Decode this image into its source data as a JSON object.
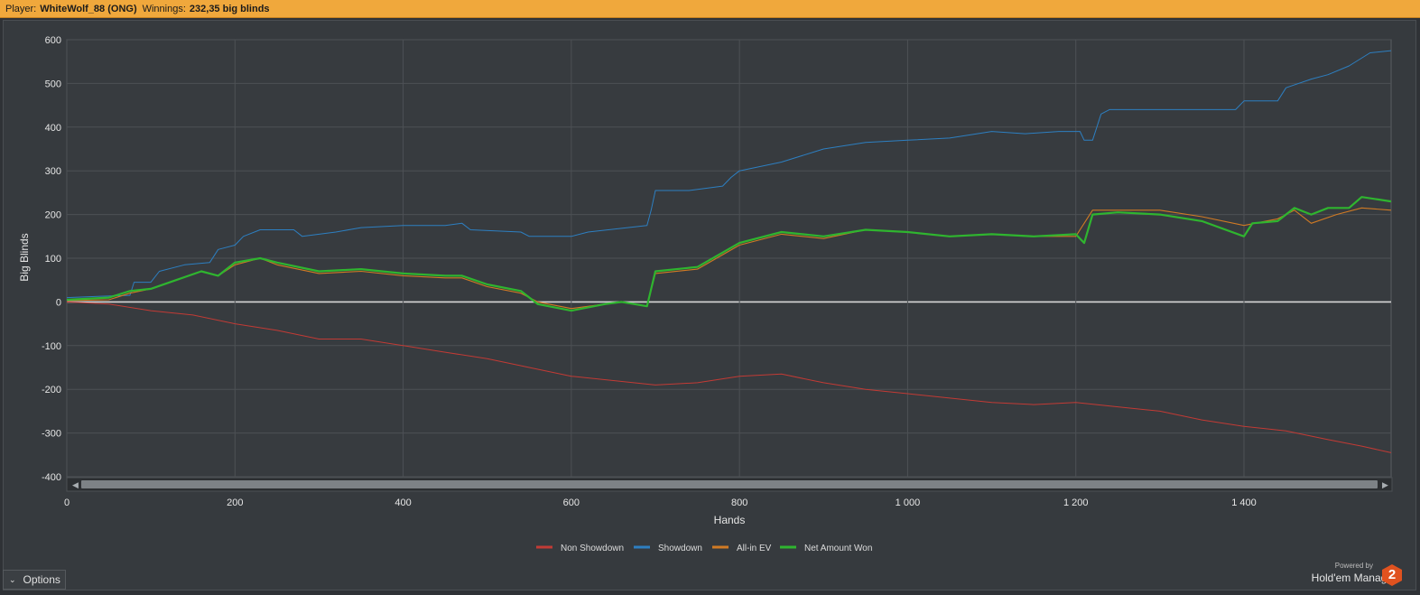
{
  "header": {
    "player_label": "Player:",
    "player_name": "WhiteWolf_88 (ONG)",
    "winnings_label": "Winnings:",
    "winnings_value": "232,35 big blinds"
  },
  "options": {
    "label": "Options"
  },
  "brand": {
    "powered_by": "Powered by",
    "name": "Hold'em Manager",
    "logo_number": "2"
  },
  "colors": {
    "non_showdown": "#c23b35",
    "showdown": "#2d7fc1",
    "allin_ev": "#d07a24",
    "net_won": "#2fb52f"
  },
  "chart_data": {
    "type": "line",
    "xlabel": "Hands",
    "ylabel": "Big Blinds",
    "xlim": [
      0,
      1575
    ],
    "ylim": [
      -400,
      600
    ],
    "x_ticks": [
      0,
      200,
      400,
      600,
      800,
      1000,
      1200,
      1400
    ],
    "x_tick_labels": [
      "0",
      "200",
      "400",
      "600",
      "800",
      "1 000",
      "1 200",
      "1 400"
    ],
    "y_ticks": [
      600,
      500,
      400,
      300,
      200,
      100,
      0,
      -100,
      -200,
      -300,
      -400
    ],
    "grid": true,
    "legend_position": "bottom-center",
    "series": [
      {
        "name": "Non Showdown",
        "color_key": "non_showdown",
        "points": [
          [
            0,
            0
          ],
          [
            50,
            -5
          ],
          [
            100,
            -20
          ],
          [
            150,
            -30
          ],
          [
            200,
            -50
          ],
          [
            250,
            -65
          ],
          [
            300,
            -85
          ],
          [
            350,
            -85
          ],
          [
            400,
            -100
          ],
          [
            450,
            -115
          ],
          [
            500,
            -130
          ],
          [
            550,
            -150
          ],
          [
            600,
            -170
          ],
          [
            650,
            -180
          ],
          [
            700,
            -190
          ],
          [
            750,
            -185
          ],
          [
            800,
            -170
          ],
          [
            850,
            -165
          ],
          [
            900,
            -185
          ],
          [
            950,
            -200
          ],
          [
            1000,
            -210
          ],
          [
            1050,
            -220
          ],
          [
            1100,
            -230
          ],
          [
            1150,
            -235
          ],
          [
            1200,
            -230
          ],
          [
            1250,
            -240
          ],
          [
            1300,
            -250
          ],
          [
            1350,
            -270
          ],
          [
            1400,
            -285
          ],
          [
            1450,
            -295
          ],
          [
            1500,
            -315
          ],
          [
            1540,
            -330
          ],
          [
            1575,
            -345
          ]
        ]
      },
      {
        "name": "Showdown",
        "color_key": "showdown",
        "points": [
          [
            0,
            10
          ],
          [
            40,
            13
          ],
          [
            75,
            15
          ],
          [
            80,
            45
          ],
          [
            100,
            45
          ],
          [
            110,
            70
          ],
          [
            140,
            85
          ],
          [
            170,
            90
          ],
          [
            180,
            120
          ],
          [
            200,
            130
          ],
          [
            210,
            150
          ],
          [
            230,
            165
          ],
          [
            270,
            165
          ],
          [
            280,
            150
          ],
          [
            320,
            160
          ],
          [
            350,
            170
          ],
          [
            400,
            175
          ],
          [
            450,
            175
          ],
          [
            470,
            180
          ],
          [
            480,
            165
          ],
          [
            540,
            160
          ],
          [
            550,
            150
          ],
          [
            600,
            150
          ],
          [
            620,
            160
          ],
          [
            690,
            175
          ],
          [
            695,
            210
          ],
          [
            700,
            255
          ],
          [
            740,
            255
          ],
          [
            780,
            265
          ],
          [
            790,
            285
          ],
          [
            800,
            300
          ],
          [
            850,
            320
          ],
          [
            900,
            350
          ],
          [
            950,
            365
          ],
          [
            1000,
            370
          ],
          [
            1050,
            375
          ],
          [
            1100,
            390
          ],
          [
            1140,
            385
          ],
          [
            1180,
            390
          ],
          [
            1205,
            390
          ],
          [
            1210,
            370
          ],
          [
            1220,
            370
          ],
          [
            1230,
            430
          ],
          [
            1240,
            440
          ],
          [
            1300,
            440
          ],
          [
            1350,
            440
          ],
          [
            1390,
            440
          ],
          [
            1400,
            460
          ],
          [
            1440,
            460
          ],
          [
            1450,
            490
          ],
          [
            1480,
            510
          ],
          [
            1500,
            520
          ],
          [
            1525,
            540
          ],
          [
            1550,
            570
          ],
          [
            1575,
            575
          ]
        ]
      },
      {
        "name": "All-in EV",
        "color_key": "allin_ev",
        "points": [
          [
            0,
            3
          ],
          [
            50,
            5
          ],
          [
            75,
            20
          ],
          [
            100,
            30
          ],
          [
            130,
            50
          ],
          [
            160,
            70
          ],
          [
            180,
            60
          ],
          [
            200,
            85
          ],
          [
            230,
            100
          ],
          [
            250,
            85
          ],
          [
            300,
            65
          ],
          [
            350,
            70
          ],
          [
            400,
            60
          ],
          [
            450,
            55
          ],
          [
            470,
            55
          ],
          [
            500,
            35
          ],
          [
            540,
            20
          ],
          [
            560,
            0
          ],
          [
            600,
            -15
          ],
          [
            640,
            -5
          ],
          [
            660,
            0
          ],
          [
            690,
            -10
          ],
          [
            700,
            65
          ],
          [
            750,
            75
          ],
          [
            800,
            130
          ],
          [
            850,
            155
          ],
          [
            900,
            145
          ],
          [
            950,
            165
          ],
          [
            1000,
            160
          ],
          [
            1050,
            150
          ],
          [
            1100,
            155
          ],
          [
            1150,
            150
          ],
          [
            1200,
            150
          ],
          [
            1220,
            210
          ],
          [
            1250,
            210
          ],
          [
            1300,
            210
          ],
          [
            1350,
            195
          ],
          [
            1400,
            175
          ],
          [
            1440,
            190
          ],
          [
            1460,
            210
          ],
          [
            1480,
            180
          ],
          [
            1510,
            200
          ],
          [
            1540,
            215
          ],
          [
            1575,
            210
          ]
        ]
      },
      {
        "name": "Net Amount Won",
        "color_key": "net_won",
        "points": [
          [
            0,
            5
          ],
          [
            50,
            10
          ],
          [
            75,
            25
          ],
          [
            100,
            30
          ],
          [
            130,
            50
          ],
          [
            160,
            70
          ],
          [
            180,
            60
          ],
          [
            200,
            90
          ],
          [
            230,
            100
          ],
          [
            250,
            90
          ],
          [
            300,
            70
          ],
          [
            350,
            75
          ],
          [
            400,
            65
          ],
          [
            450,
            60
          ],
          [
            470,
            60
          ],
          [
            500,
            40
          ],
          [
            540,
            25
          ],
          [
            560,
            -5
          ],
          [
            600,
            -20
          ],
          [
            640,
            -5
          ],
          [
            660,
            0
          ],
          [
            690,
            -10
          ],
          [
            700,
            70
          ],
          [
            750,
            80
          ],
          [
            800,
            135
          ],
          [
            850,
            160
          ],
          [
            900,
            150
          ],
          [
            950,
            165
          ],
          [
            1000,
            160
          ],
          [
            1050,
            150
          ],
          [
            1100,
            155
          ],
          [
            1150,
            150
          ],
          [
            1200,
            155
          ],
          [
            1210,
            135
          ],
          [
            1220,
            200
          ],
          [
            1250,
            205
          ],
          [
            1300,
            200
          ],
          [
            1350,
            185
          ],
          [
            1400,
            150
          ],
          [
            1410,
            180
          ],
          [
            1440,
            185
          ],
          [
            1460,
            215
          ],
          [
            1480,
            200
          ],
          [
            1500,
            215
          ],
          [
            1525,
            215
          ],
          [
            1540,
            240
          ],
          [
            1575,
            230
          ]
        ]
      }
    ]
  }
}
